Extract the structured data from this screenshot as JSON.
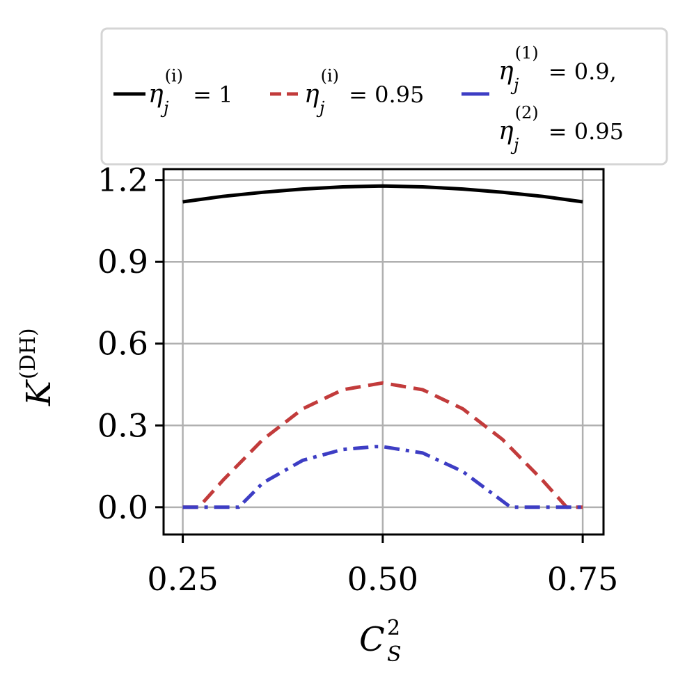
{
  "chart_data": {
    "type": "line",
    "title": "",
    "xlabel": {
      "base": "C",
      "sub": "S",
      "sup": "2"
    },
    "ylabel": {
      "base": "K",
      "sup": "(DH)"
    },
    "xlim": [
      0.226,
      0.776
    ],
    "ylim": [
      -0.1,
      1.24
    ],
    "xticks": [
      0.25,
      0.5,
      0.75
    ],
    "xtick_labels": [
      "0.25",
      "0.50",
      "0.75"
    ],
    "yticks": [
      0.0,
      0.3,
      0.6,
      0.9,
      1.2
    ],
    "ytick_labels": [
      "0.0",
      "0.3",
      "0.6",
      "0.9",
      "1.2"
    ],
    "grid": true,
    "legend_placement": "above plot",
    "series": [
      {
        "name": "η_j^(i) = 1",
        "legend_parts": [
          {
            "base": "η",
            "sub": "j",
            "sup": "(i)",
            "rest": " = 1"
          }
        ],
        "color": "#000000",
        "style": "solid",
        "x": [
          0.25,
          0.3,
          0.35,
          0.4,
          0.45,
          0.5,
          0.55,
          0.6,
          0.65,
          0.7,
          0.75
        ],
        "y": [
          1.12,
          1.14,
          1.155,
          1.167,
          1.175,
          1.178,
          1.175,
          1.167,
          1.155,
          1.14,
          1.12
        ]
      },
      {
        "name": "η_j^(i) = 0.95",
        "legend_parts": [
          {
            "base": "η",
            "sub": "j",
            "sup": "(i)",
            "rest": " = 0.95"
          }
        ],
        "color": "#c23b3b",
        "style": "dashed",
        "x": [
          0.25,
          0.27,
          0.3,
          0.35,
          0.4,
          0.45,
          0.5,
          0.55,
          0.6,
          0.65,
          0.7,
          0.73,
          0.75
        ],
        "y": [
          0.0,
          0.0,
          0.098,
          0.248,
          0.361,
          0.431,
          0.456,
          0.431,
          0.361,
          0.248,
          0.098,
          0.0,
          0.0
        ]
      },
      {
        "name": "η_j^(1) = 0.9, η_j^(2) = 0.95",
        "legend_parts": [
          {
            "base": "η",
            "sub": "j",
            "sup": "(1)",
            "rest": " = 0.9,"
          },
          {
            "base": "η",
            "sub": "j",
            "sup": "(2)",
            "rest": " = 0.95"
          }
        ],
        "color": "#3d3dc4",
        "style": "dashdot",
        "x": [
          0.25,
          0.32,
          0.35,
          0.4,
          0.45,
          0.49,
          0.5,
          0.55,
          0.6,
          0.66,
          0.7,
          0.75
        ],
        "y": [
          0.0,
          0.0,
          0.089,
          0.172,
          0.212,
          0.222,
          0.222,
          0.199,
          0.131,
          0.0,
          0.0,
          0.0
        ]
      }
    ]
  }
}
